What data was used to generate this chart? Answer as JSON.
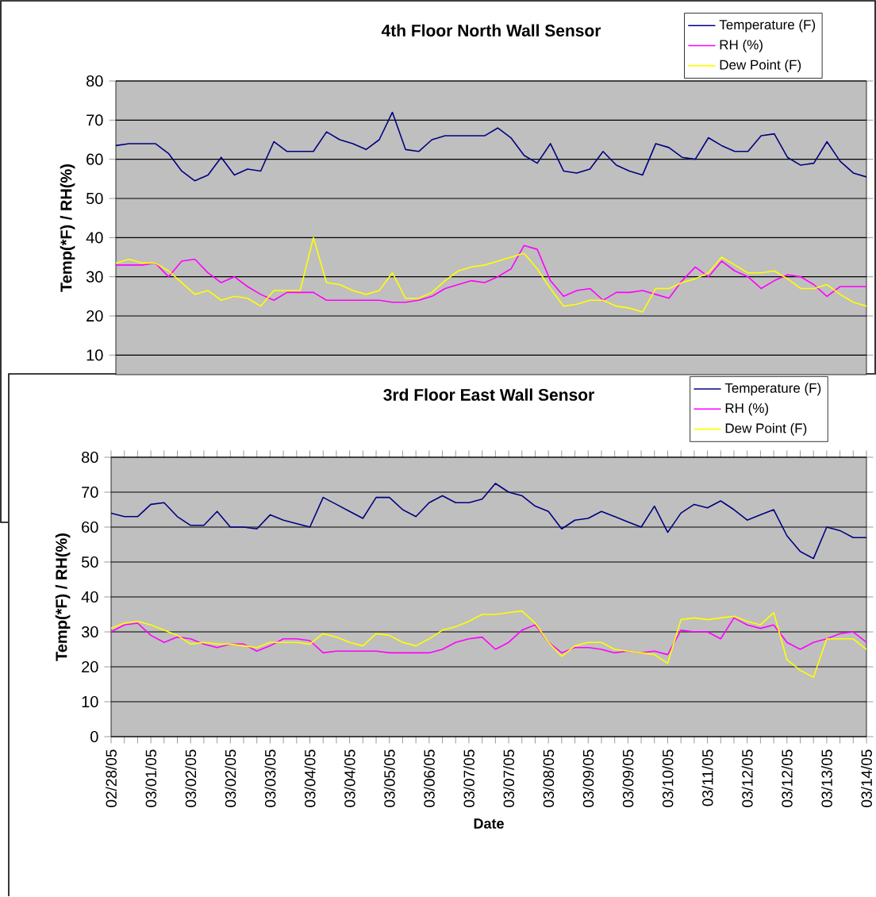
{
  "chart_data": [
    {
      "type": "line",
      "title": "4th Floor North Wall Sensor",
      "ylabel": "Temp(*F) / RH(%)",
      "categories": [
        null,
        null,
        null,
        null,
        null,
        null,
        null,
        null,
        null,
        null,
        null,
        null,
        null,
        null,
        null,
        null,
        null,
        null,
        null,
        null,
        null,
        null,
        null,
        null,
        null,
        null,
        null,
        null,
        null,
        null,
        null,
        null,
        null,
        null,
        null,
        null,
        null,
        null,
        null,
        null,
        null,
        null,
        null,
        null,
        null,
        null,
        null,
        null,
        null,
        null,
        null,
        null,
        null,
        null,
        null,
        null,
        null,
        null
      ],
      "ylim": [
        5,
        80
      ],
      "yticks": [
        10,
        20,
        30,
        40,
        50,
        60,
        70,
        80
      ],
      "tick_labels": "y",
      "grid": "y",
      "legend": "top right",
      "marker": "none",
      "series": [
        {
          "name": "Temperature (F)",
          "color": "#000080",
          "values": [
            63.5,
            64,
            64,
            64,
            61.5,
            57,
            54.5,
            56,
            60.5,
            56,
            57.5,
            57,
            64.5,
            62,
            62,
            62,
            67,
            65,
            64,
            62.5,
            65,
            72,
            62.5,
            62,
            65,
            66,
            66,
            66,
            66,
            68,
            65.5,
            61,
            59,
            64,
            57,
            56.5,
            57.5,
            62,
            58.5,
            57,
            56,
            64,
            63,
            60.5,
            60,
            65.5,
            63.5,
            62,
            62,
            66,
            66.5,
            60.5,
            58.5,
            59,
            64.5,
            59.5,
            56.5,
            55.5
          ]
        },
        {
          "name": "RH (%)",
          "color": "#ff00ff",
          "values": [
            33,
            33,
            33,
            33.5,
            30,
            34,
            34.5,
            31,
            28.5,
            30,
            27.5,
            25.5,
            24,
            26,
            26,
            26,
            24,
            24,
            24,
            24,
            24,
            23.5,
            23.5,
            24,
            25,
            27,
            28,
            29,
            28.5,
            30,
            32,
            38,
            37,
            29,
            25,
            26.5,
            27,
            24,
            26,
            26,
            26.5,
            25.5,
            24.5,
            29,
            32.5,
            30,
            34,
            31.5,
            30,
            27,
            29,
            30.5,
            30,
            28,
            25,
            27.5,
            27.5,
            27.5
          ]
        },
        {
          "name": "Dew Point (F)",
          "color": "#ffff00",
          "values": [
            33.5,
            34.5,
            33.5,
            33.5,
            31.5,
            28.5,
            25.5,
            26.5,
            24,
            25,
            24.5,
            22.5,
            26.5,
            26.5,
            26.5,
            40,
            28.5,
            28,
            26.5,
            25.5,
            26.5,
            31,
            24.5,
            24.5,
            26,
            29,
            31.5,
            32.5,
            33,
            34,
            35,
            36,
            32,
            27,
            22.5,
            23,
            24,
            24,
            22.5,
            22,
            21,
            27,
            27,
            28.5,
            29.5,
            31,
            35,
            33,
            31,
            31,
            31.5,
            29.5,
            27,
            27,
            28,
            25.5,
            23.5,
            22.5
          ]
        }
      ]
    },
    {
      "type": "line",
      "title": "3rd Floor East Wall Sensor",
      "xlabel": "Date",
      "ylabel": "Temp(*F) / RH(%)",
      "categories": [
        "02/28/05",
        null,
        null,
        "03/01/05",
        null,
        null,
        "03/02/05",
        null,
        null,
        "03/02/05",
        null,
        null,
        "03/03/05",
        null,
        null,
        "03/04/05",
        null,
        null,
        "03/04/05",
        null,
        null,
        "03/05/05",
        null,
        null,
        "03/06/05",
        null,
        null,
        "03/07/05",
        null,
        null,
        "03/07/05",
        null,
        null,
        "03/08/05",
        null,
        null,
        "03/09/05",
        null,
        null,
        "03/09/05",
        null,
        null,
        "03/10/05",
        null,
        null,
        "03/11/05",
        null,
        null,
        "03/12/05",
        null,
        null,
        "03/12/05",
        null,
        null,
        "03/13/05",
        null,
        null,
        "03/14/05"
      ],
      "ylim": [
        0,
        80
      ],
      "yticks": [
        0,
        10,
        20,
        30,
        40,
        50,
        60,
        70,
        80
      ],
      "grid": "y",
      "legend": "top right",
      "marker": "none",
      "series": [
        {
          "name": "Temperature (F)",
          "color": "#000080",
          "values": [
            64,
            63,
            63,
            66.5,
            67,
            63,
            60.5,
            60.5,
            64.5,
            60,
            60,
            59.5,
            63.5,
            62,
            61,
            60,
            68.5,
            66.5,
            64.5,
            62.5,
            68.5,
            68.5,
            65,
            63,
            67,
            69,
            67,
            67,
            68,
            72.5,
            70,
            69,
            66,
            64.5,
            59.5,
            62,
            62.5,
            64.5,
            63,
            61.5,
            60,
            66,
            58.5,
            64,
            66.5,
            65.5,
            67.5,
            65,
            62,
            63.5,
            65,
            57.5,
            53,
            51,
            60,
            59,
            57,
            57
          ]
        },
        {
          "name": "RH (%)",
          "color": "#ff00ff",
          "values": [
            30,
            32,
            32.5,
            29,
            27,
            28.5,
            28,
            26.5,
            25.5,
            26.5,
            26.5,
            24.5,
            26,
            28,
            28,
            27.5,
            24,
            24.5,
            24.5,
            24.5,
            24.5,
            24,
            24,
            24,
            24,
            25,
            27,
            28,
            28.5,
            25,
            27,
            30.5,
            32,
            27,
            24,
            25.5,
            25.5,
            25,
            24,
            24.5,
            24,
            24.5,
            23.5,
            30.5,
            30,
            30,
            28,
            34,
            32,
            31,
            32,
            27,
            25,
            27,
            28,
            29.5,
            30,
            27
          ]
        },
        {
          "name": "Dew Point (F)",
          "color": "#ffff00",
          "values": [
            31,
            32.5,
            33,
            32,
            30.5,
            29,
            26.5,
            27,
            26.5,
            26.5,
            26,
            25.5,
            27,
            27,
            27,
            26.5,
            29.5,
            28.5,
            27,
            26,
            29.5,
            29,
            27,
            26,
            28,
            30.5,
            31.5,
            33,
            35,
            35,
            35.5,
            36,
            32.5,
            27,
            23,
            26,
            27,
            27,
            25,
            24.5,
            24,
            23.5,
            21,
            33.5,
            34,
            33.5,
            34,
            34.5,
            33,
            32,
            35.5,
            22,
            19,
            17,
            28,
            28,
            28,
            25
          ]
        }
      ]
    }
  ]
}
